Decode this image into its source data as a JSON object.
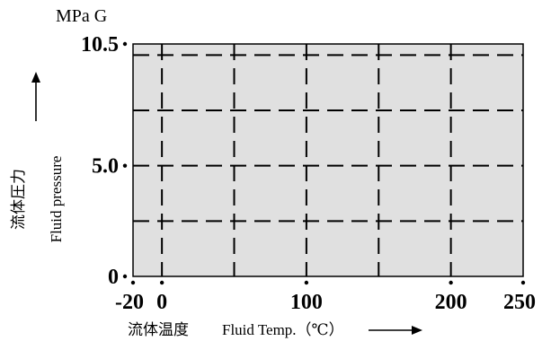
{
  "chart_data": {
    "type": "area",
    "title": "",
    "y_unit": "MPa G",
    "ylabel_cn": "流体圧力",
    "ylabel_en": "Fluid pressure",
    "xlabel_cn": "流体温度",
    "xlabel_en": "Fluid Temp.（℃）",
    "xlim": [
      -20,
      250
    ],
    "ylim": [
      0,
      10.5
    ],
    "x_ticks": [
      {
        "value": -20,
        "label": "-20"
      },
      {
        "value": 0,
        "label": "0"
      },
      {
        "value": 100,
        "label": "100"
      },
      {
        "value": 200,
        "label": "200"
      },
      {
        "value": 250,
        "label": "250"
      }
    ],
    "y_ticks": [
      {
        "value": 0,
        "label": "0"
      },
      {
        "value": 5.0,
        "label": "5.0"
      },
      {
        "value": 10.5,
        "label": "10.5"
      }
    ],
    "x_grid": [
      0,
      50,
      100,
      150,
      200
    ],
    "y_grid": [
      2.5,
      5.0,
      7.5,
      10.0
    ],
    "region": {
      "x_from": -20,
      "x_to": 250,
      "y_from": 0,
      "y_to": 10.5
    },
    "grid": true,
    "colors": {
      "fill": "#e0e0e0",
      "border": "#000000"
    }
  }
}
